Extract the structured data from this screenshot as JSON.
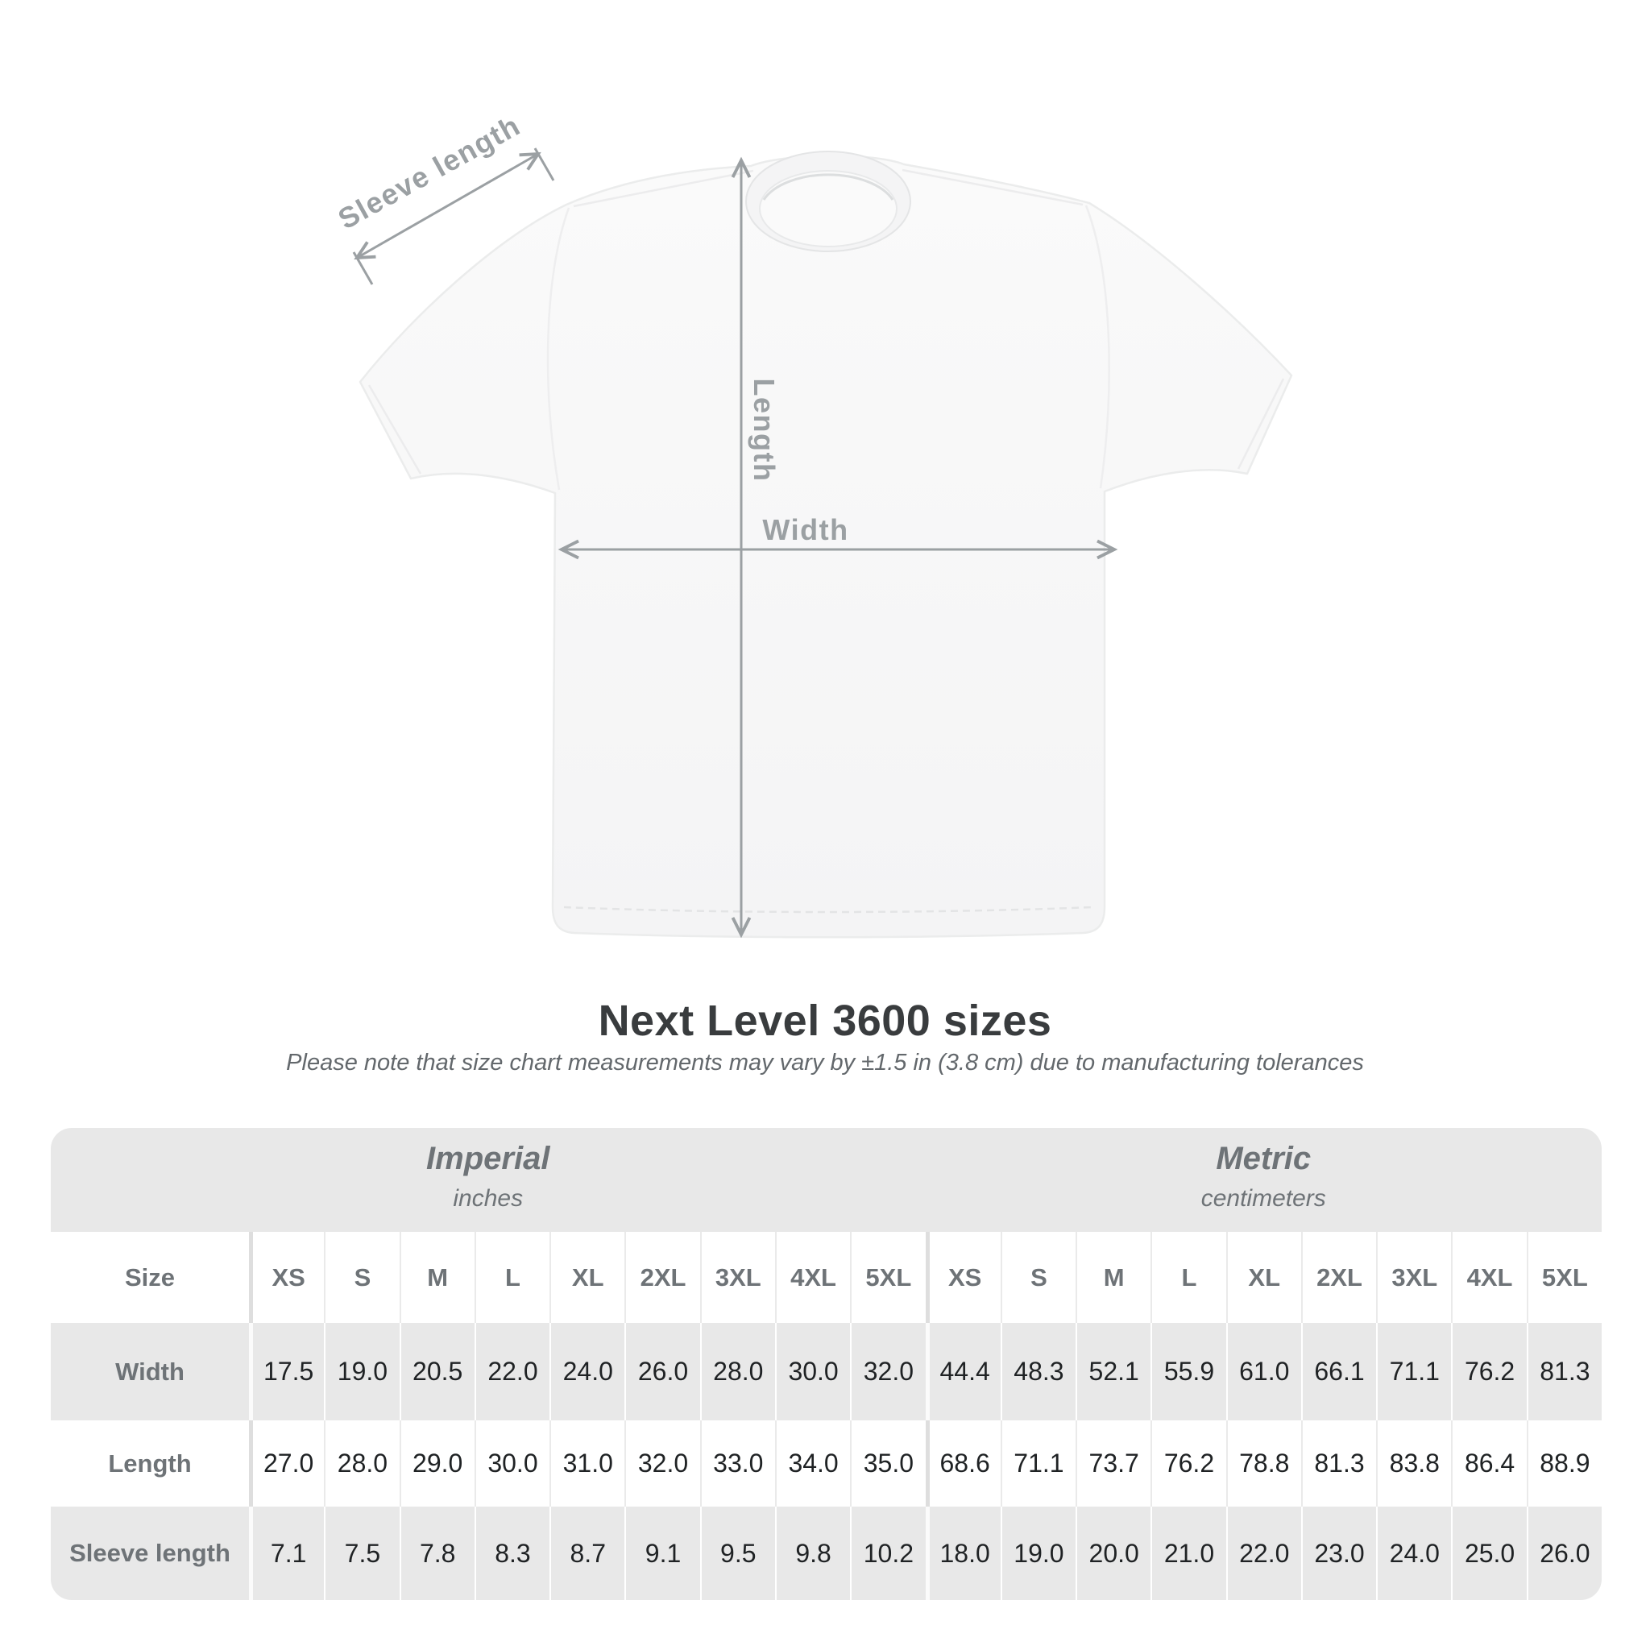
{
  "diagram": {
    "labels": {
      "sleeve_length": "Sleeve length",
      "length": "Length",
      "width": "Width"
    }
  },
  "title": "Next Level 3600 sizes",
  "subtitle": "Please note that size chart measurements may vary by ±1.5 in (3.8 cm) due to manufacturing tolerances",
  "table": {
    "unit_groups": [
      {
        "name": "Imperial",
        "unit": "inches"
      },
      {
        "name": "Metric",
        "unit": "centimeters"
      }
    ],
    "size_header": "Size",
    "sizes": [
      "XS",
      "S",
      "M",
      "L",
      "XL",
      "2XL",
      "3XL",
      "4XL",
      "5XL"
    ],
    "rows": [
      {
        "label": "Width",
        "imperial": [
          "17.5",
          "19.0",
          "20.5",
          "22.0",
          "24.0",
          "26.0",
          "28.0",
          "30.0",
          "32.0"
        ],
        "metric": [
          "44.4",
          "48.3",
          "52.1",
          "55.9",
          "61.0",
          "66.1",
          "71.1",
          "76.2",
          "81.3"
        ]
      },
      {
        "label": "Length",
        "imperial": [
          "27.0",
          "28.0",
          "29.0",
          "30.0",
          "31.0",
          "32.0",
          "33.0",
          "34.0",
          "35.0"
        ],
        "metric": [
          "68.6",
          "71.1",
          "73.7",
          "76.2",
          "78.8",
          "81.3",
          "83.8",
          "86.4",
          "88.9"
        ]
      },
      {
        "label": "Sleeve length",
        "imperial": [
          "7.1",
          "7.5",
          "7.8",
          "8.3",
          "8.7",
          "9.1",
          "9.5",
          "9.8",
          "10.2"
        ],
        "metric": [
          "18.0",
          "19.0",
          "20.0",
          "21.0",
          "22.0",
          "23.0",
          "24.0",
          "25.0",
          "26.0"
        ]
      }
    ]
  },
  "colors": {
    "background": "#ffffff",
    "table_stripe": "#e8e8e8",
    "table_header_text": "#6e7377",
    "value_text": "#1f2224",
    "title_text": "#393c3e",
    "subtitle_text": "#63686c",
    "diagram_annotation": "#9ba0a3",
    "shirt_fill": "#f8f8f9"
  }
}
